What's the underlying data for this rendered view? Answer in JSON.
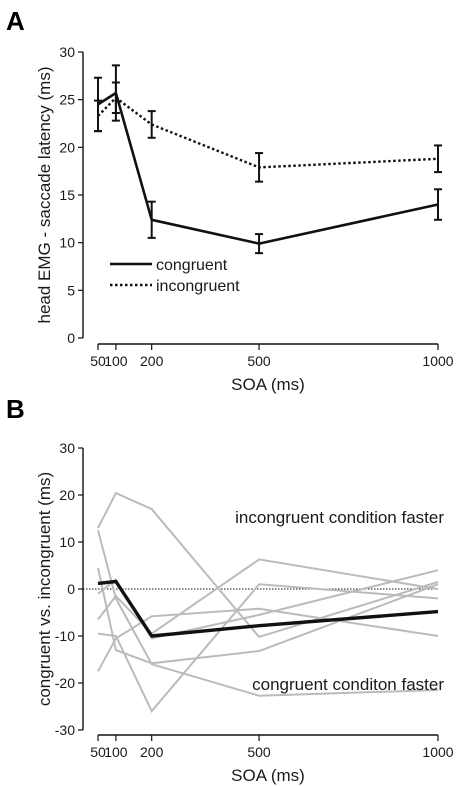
{
  "chart_data": [
    {
      "panel": "A",
      "type": "line",
      "xlabel": "SOA (ms)",
      "ylabel": "head EMG - saccade latency (ms)",
      "xticks": [
        50,
        100,
        200,
        500,
        1000
      ],
      "yticks": [
        0,
        5,
        10,
        15,
        20,
        25,
        30
      ],
      "ylim": [
        0,
        30
      ],
      "legend_position": "lower-left",
      "series": [
        {
          "name": "congruent",
          "style": "solid",
          "color": "#111111",
          "x": [
            50,
            100,
            200,
            500,
            1000
          ],
          "y": [
            24.5,
            25.7,
            12.4,
            9.9,
            14.0
          ],
          "err": [
            2.8,
            2.9,
            1.9,
            1.0,
            1.6
          ]
        },
        {
          "name": "incongruent",
          "style": "dotted",
          "color": "#111111",
          "x": [
            50,
            100,
            200,
            500,
            1000
          ],
          "y": [
            23.3,
            25.2,
            22.4,
            17.9,
            18.8
          ],
          "err": [
            1.6,
            1.6,
            1.4,
            1.5,
            1.4
          ]
        }
      ]
    },
    {
      "panel": "B",
      "type": "line",
      "xlabel": "SOA (ms)",
      "ylabel": "congruent vs. incongruent (ms)",
      "xticks": [
        50,
        100,
        200,
        500,
        1000
      ],
      "yticks": [
        -30,
        -20,
        -10,
        0,
        10,
        20,
        30
      ],
      "ylim": [
        -30,
        30
      ],
      "reference_line": 0,
      "annotations": [
        "incongruent condition faster",
        "congruent conditon faster"
      ],
      "mean_series": {
        "color": "#111111",
        "x": [
          50,
          100,
          200,
          500,
          1000
        ],
        "y": [
          1.2,
          1.6,
          -10.0,
          -7.8,
          -4.8
        ]
      },
      "subject_series": {
        "color": "#bbbbbb",
        "x": [
          50,
          100,
          200,
          500,
          1000
        ],
        "lines": [
          [
            13.0,
            20.4,
            17.0,
            -10.2,
            1.5
          ],
          [
            12.5,
            -2.0,
            -16.0,
            -22.7,
            -21.5
          ],
          [
            4.5,
            -13.0,
            -15.8,
            -13.2,
            1.0
          ],
          [
            -17.5,
            -10.5,
            -5.8,
            -4.2,
            -10.0
          ],
          [
            -6.5,
            -1.5,
            -9.5,
            6.3,
            0.0
          ],
          [
            -9.5,
            -10.0,
            -26.0,
            1.0,
            -2.0
          ],
          [
            -1.0,
            2.0,
            -10.5,
            -5.5,
            4.0
          ]
        ]
      }
    }
  ]
}
